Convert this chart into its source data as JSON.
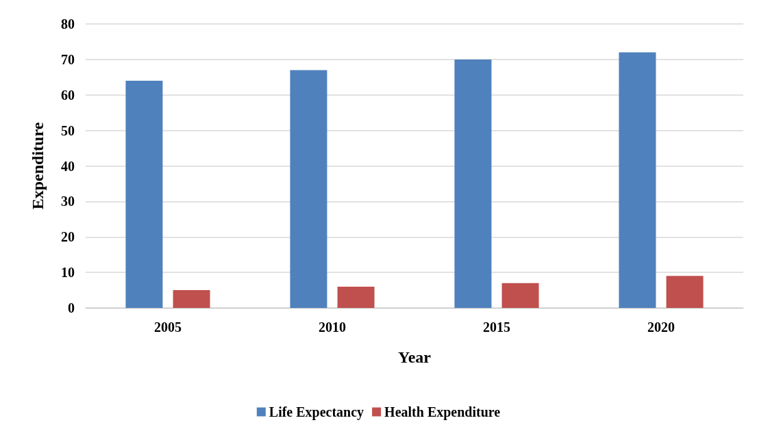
{
  "chart_data": {
    "type": "bar",
    "xlabel": "Year",
    "ylabel": "Expenditure",
    "categories": [
      "2005",
      "2010",
      "2015",
      "2020"
    ],
    "series": [
      {
        "name": "Life Expectancy",
        "color": "#4f81bd",
        "values": [
          64,
          67,
          70,
          72
        ]
      },
      {
        "name": "Health Expenditure",
        "color": "#c0504d",
        "values": [
          5,
          6,
          7,
          9
        ]
      }
    ],
    "ylim": [
      0,
      80
    ],
    "yticks": [
      0,
      10,
      20,
      30,
      40,
      50,
      60,
      70,
      80
    ],
    "grid": "y",
    "legend": "bottom"
  }
}
